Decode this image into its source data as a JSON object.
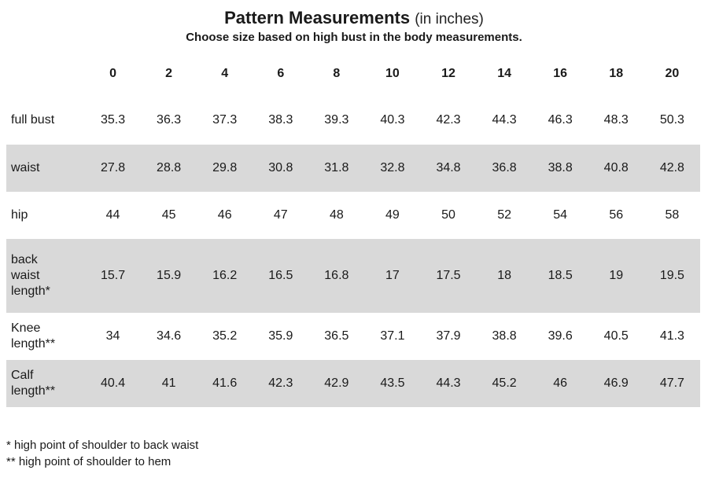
{
  "title": {
    "main": "Pattern Measurements",
    "unit": "(in inches)",
    "subtitle": "Choose size based on high bust in the body measurements."
  },
  "table": {
    "sizes": [
      "0",
      "2",
      "4",
      "6",
      "8",
      "10",
      "12",
      "14",
      "16",
      "18",
      "20"
    ],
    "rows": [
      {
        "label": "full bust",
        "shaded": false,
        "values": [
          "35.3",
          "36.3",
          "37.3",
          "38.3",
          "39.3",
          "40.3",
          "42.3",
          "44.3",
          "46.3",
          "48.3",
          "50.3"
        ]
      },
      {
        "label": "waist",
        "shaded": true,
        "values": [
          "27.8",
          "28.8",
          "29.8",
          "30.8",
          "31.8",
          "32.8",
          "34.8",
          "36.8",
          "38.8",
          "40.8",
          "42.8"
        ]
      },
      {
        "label": "hip",
        "shaded": false,
        "values": [
          "44",
          "45",
          "46",
          "47",
          "48",
          "49",
          "50",
          "52",
          "54",
          "56",
          "58"
        ]
      },
      {
        "label": "back\nwaist\nlength*",
        "shaded": true,
        "values": [
          "15.7",
          "15.9",
          "16.2",
          "16.5",
          "16.8",
          "17",
          "17.5",
          "18",
          "18.5",
          "19",
          "19.5"
        ]
      },
      {
        "label": "Knee\nlength**",
        "shaded": false,
        "values": [
          "34",
          "34.6",
          "35.2",
          "35.9",
          "36.5",
          "37.1",
          "37.9",
          "38.8",
          "39.6",
          "40.5",
          "41.3"
        ]
      },
      {
        "label": "Calf\nlength**",
        "shaded": true,
        "values": [
          "40.4",
          "41",
          "41.6",
          "42.3",
          "42.9",
          "43.5",
          "44.3",
          "45.2",
          "46",
          "46.9",
          "47.7"
        ]
      }
    ]
  },
  "footnotes": [
    "* high point of shoulder to back waist",
    "** high point of shoulder to hem"
  ],
  "colors": {
    "shaded_row": "#d9d9d9",
    "text": "#1a1a1a",
    "background": "#ffffff"
  }
}
